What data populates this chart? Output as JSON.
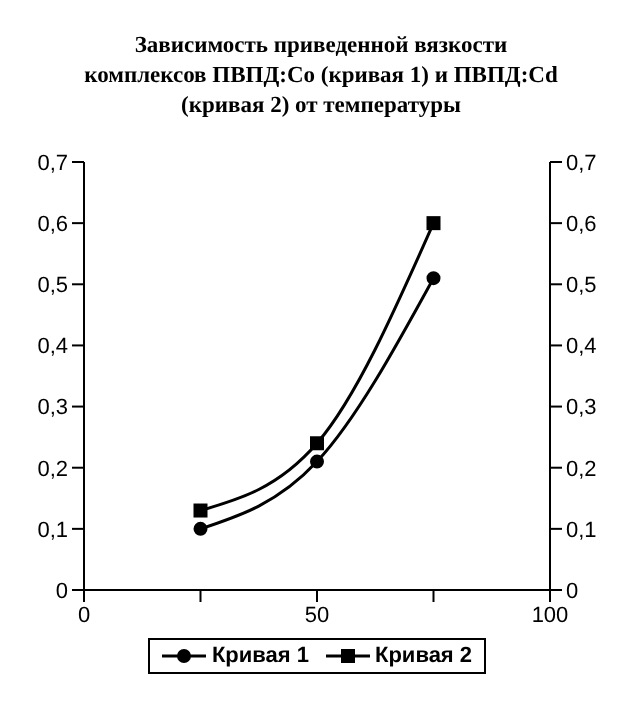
{
  "chart_data": {
    "type": "line",
    "title": "Зависимость приведенной вязкости комплексов ПВПД:Co (кривая 1) и ПВПД:Cd (кривая 2) от температуры",
    "x": [
      25,
      50,
      75
    ],
    "series": [
      {
        "name": "Кривая 1",
        "color": "#000000",
        "values": [
          0.1,
          0.21,
          0.51
        ],
        "marker": "circle"
      },
      {
        "name": "Кривая 2",
        "color": "#000000",
        "values": [
          0.13,
          0.24,
          0.6
        ],
        "marker": "square"
      }
    ],
    "xlim": [
      0,
      100
    ],
    "xticks": [
      0,
      {
        "value": 25,
        "label": null
      },
      50,
      {
        "value": 75,
        "label": null
      },
      100
    ],
    "ylim": [
      0,
      0.7
    ],
    "yticks": [
      0,
      {
        "value": 0.1,
        "label": "0,1"
      },
      {
        "value": 0.2,
        "label": "0,2"
      },
      {
        "value": 0.3,
        "label": "0,3"
      },
      {
        "value": 0.4,
        "label": "0,4"
      },
      {
        "value": 0.5,
        "label": "0,5"
      },
      {
        "value": 0.6,
        "label": "0,6"
      },
      {
        "value": 0.7,
        "label": "0,7"
      }
    ],
    "y2lim": [
      0,
      0.7
    ],
    "y2ticks": [
      0,
      {
        "value": 0.1,
        "label": "0,1"
      },
      {
        "value": 0.2,
        "label": "0,2"
      },
      {
        "value": 0.3,
        "label": "0,3"
      },
      {
        "value": 0.4,
        "label": "0,4"
      },
      {
        "value": 0.5,
        "label": "0,5"
      },
      {
        "value": 0.6,
        "label": "0,6"
      },
      {
        "value": 0.7,
        "label": "0,7"
      }
    ],
    "grid": false,
    "legend": "bottom"
  }
}
